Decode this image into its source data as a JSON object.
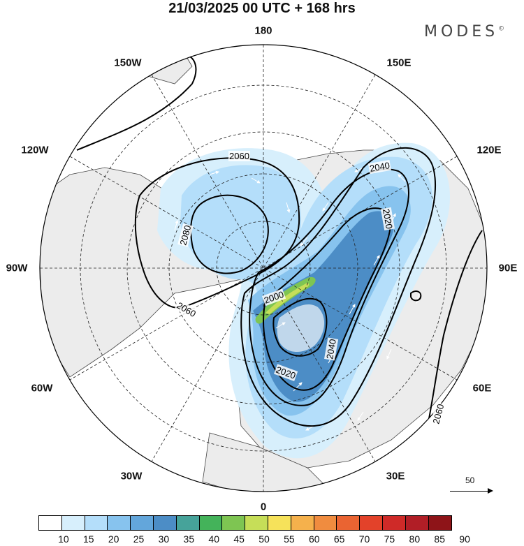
{
  "title": "21/03/2025  00 UTC  + 168 hrs",
  "brand": "MODES",
  "brand_mark": "©",
  "longitude_labels": {
    "top": "180",
    "top_left": "150W",
    "top_right": "150E",
    "upper_left": "120W",
    "upper_right": "120E",
    "left": "90W",
    "right": "90E",
    "lower_left": "60W",
    "lower_right": "60E",
    "bottom_left": "30W",
    "bottom_right": "30E",
    "bottom": "0"
  },
  "contour_labels": [
    "2060",
    "2080",
    "2060",
    "2040",
    "2020",
    "2000",
    "2020",
    "2040",
    "2060"
  ],
  "reference_vector": "50",
  "colorbar": {
    "colors": [
      "#ffffff",
      "#d7effc",
      "#b4defa",
      "#87c3ee",
      "#63a6db",
      "#4c8dc6",
      "#46a39a",
      "#44b35a",
      "#7ec552",
      "#c6de58",
      "#f6e25a",
      "#f5b14c",
      "#f08c3f",
      "#ea6432",
      "#e3422a",
      "#cf2a28",
      "#b11e26",
      "#8e1418"
    ],
    "tick_labels": [
      "10",
      "15",
      "20",
      "25",
      "30",
      "35",
      "40",
      "45",
      "50",
      "55",
      "60",
      "65",
      "70",
      "75",
      "80",
      "85",
      "90"
    ]
  },
  "colors": {
    "land": "#ececec",
    "ocean": "#ffffff",
    "jet_light": "#b4defa",
    "jet_mid": "#87c3ee",
    "jet_strong": "#4c8dc6",
    "jet_core": "#7ec552"
  }
}
